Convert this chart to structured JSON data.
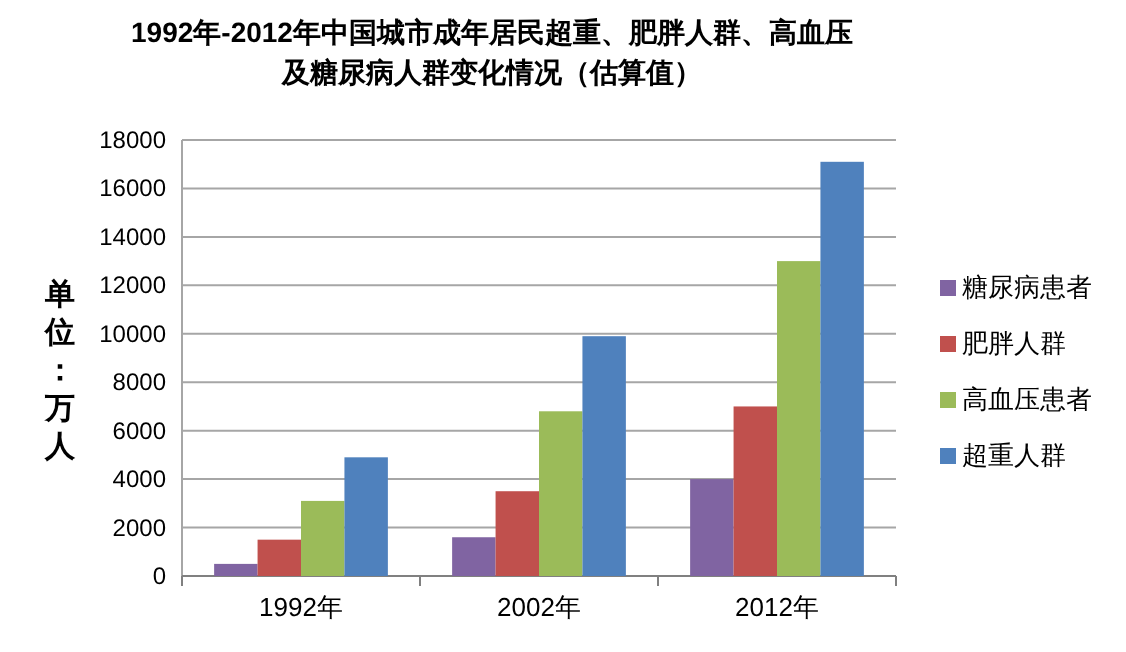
{
  "chart_data": {
    "type": "bar",
    "title": "1992年-2012年中国城市成年居民超重、肥胖人群、高血压及糖尿病人群变化情况（估算值）",
    "ylabel": "单位：万人",
    "categories": [
      "1992年",
      "2002年",
      "2012年"
    ],
    "series": [
      {
        "name": "糖尿病患者",
        "color": "#8064a2",
        "values": [
          500,
          1600,
          4000
        ]
      },
      {
        "name": "肥胖人群",
        "color": "#c0504d",
        "values": [
          1500,
          3500,
          7000
        ]
      },
      {
        "name": "高血压患者",
        "color": "#9bbb59",
        "values": [
          3100,
          6800,
          13000
        ]
      },
      {
        "name": "超重人群",
        "color": "#4f81bd",
        "values": [
          4900,
          9900,
          17100
        ]
      }
    ],
    "ylim": [
      0,
      18000
    ],
    "yticks": [
      0,
      2000,
      4000,
      6000,
      8000,
      10000,
      12000,
      14000,
      16000,
      18000
    ],
    "grid": "y",
    "legend": "right"
  }
}
